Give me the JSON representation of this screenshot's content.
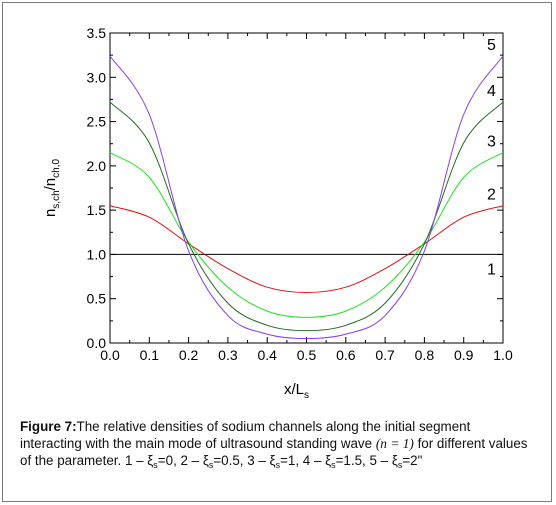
{
  "chart_data": {
    "type": "line",
    "xlabel": "x/L",
    "xlabel_sub": "s",
    "ylabel": "n",
    "ylabel_sub1": "s,ch",
    "ylabel_mid": "/n",
    "ylabel_sub2": "ch,0",
    "xlim": [
      0.0,
      1.0
    ],
    "ylim": [
      0.0,
      3.5
    ],
    "xticks": [
      "0.0",
      "0.1",
      "0.2",
      "0.3",
      "0.4",
      "0.5",
      "0.6",
      "0.7",
      "0.8",
      "0.9",
      "1.0"
    ],
    "yticks": [
      "0.0",
      "0.5",
      "1.0",
      "1.5",
      "2.0",
      "2.5",
      "3.0",
      "3.5"
    ],
    "grid": false,
    "series": [
      {
        "name": "1",
        "color": "#000000",
        "zeta": 0,
        "x": [
          0.0,
          0.1,
          0.2,
          0.3,
          0.4,
          0.5,
          0.6,
          0.7,
          0.8,
          0.9,
          1.0
        ],
        "values": [
          1.0,
          1.0,
          1.0,
          1.0,
          1.0,
          1.0,
          1.0,
          1.0,
          1.0,
          1.0,
          1.0
        ]
      },
      {
        "name": "2",
        "color": "#e01010",
        "zeta": 0.5,
        "x": [
          0.0,
          0.1,
          0.2,
          0.3,
          0.4,
          0.5,
          0.6,
          0.7,
          0.8,
          0.9,
          1.0
        ],
        "values": [
          1.55,
          1.42,
          1.12,
          0.84,
          0.63,
          0.57,
          0.63,
          0.84,
          1.12,
          1.42,
          1.55
        ]
      },
      {
        "name": "3",
        "color": "#22e022",
        "zeta": 1,
        "x": [
          0.0,
          0.1,
          0.2,
          0.3,
          0.4,
          0.5,
          0.6,
          0.7,
          0.8,
          0.9,
          1.0
        ],
        "values": [
          2.15,
          1.87,
          1.14,
          0.63,
          0.36,
          0.29,
          0.36,
          0.63,
          1.14,
          1.87,
          2.15
        ]
      },
      {
        "name": "4",
        "color": "#1e6b1e",
        "zeta": 1.5,
        "x": [
          0.0,
          0.1,
          0.2,
          0.3,
          0.4,
          0.5,
          0.6,
          0.7,
          0.8,
          0.9,
          1.0
        ],
        "values": [
          2.72,
          2.26,
          1.12,
          0.45,
          0.2,
          0.14,
          0.2,
          0.45,
          1.12,
          2.26,
          2.72
        ]
      },
      {
        "name": "5",
        "color": "#8a3df0",
        "zeta": 2,
        "x": [
          0.0,
          0.1,
          0.2,
          0.3,
          0.4,
          0.5,
          0.6,
          0.7,
          0.8,
          0.9,
          1.0
        ],
        "values": [
          3.24,
          2.58,
          1.04,
          0.31,
          0.1,
          0.05,
          0.1,
          0.31,
          1.04,
          2.58,
          3.24
        ]
      }
    ]
  },
  "caption": {
    "figure_label": "Figure 7:",
    "text_part1": "The relative densities of sodium channels along the initial segment interacting with the main mode of ultrasound standing wave ",
    "math_mode": "(n = 1)",
    "text_part2": " for different values of the parameter. 1 – ξ",
    "sub_s": "s",
    "items": [
      "=0, 2 – ξ",
      "=0.5, 3 – ξ",
      "=1, 4 – ξ",
      "=1.5, 5 – ξ",
      "=2\""
    ]
  }
}
